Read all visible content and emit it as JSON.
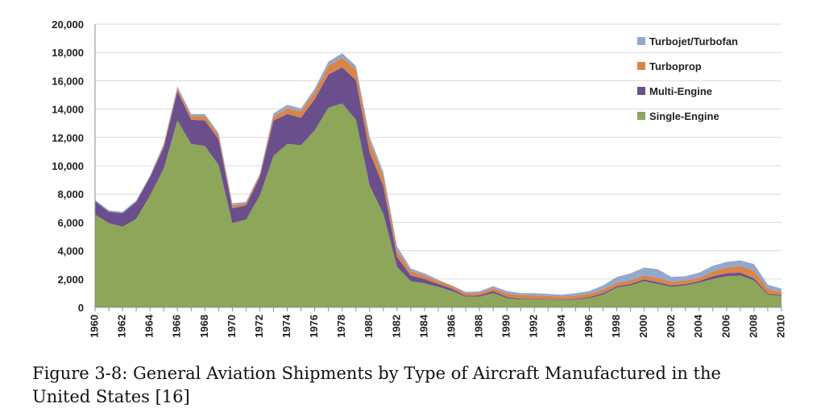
{
  "chart_data": {
    "type": "area",
    "stacked": true,
    "title": "",
    "xlabel": "",
    "ylabel": "",
    "ylim": [
      0,
      20000
    ],
    "y_ticks": [
      "0",
      "2,000",
      "4,000",
      "6,000",
      "8,000",
      "10,000",
      "12,000",
      "14,000",
      "16,000",
      "18,000",
      "20,000"
    ],
    "x_tick_labels": [
      "1960",
      "1962",
      "1964",
      "1966",
      "1968",
      "1970",
      "1972",
      "1974",
      "1976",
      "1978",
      "1980",
      "1982",
      "1984",
      "1986",
      "1988",
      "1990",
      "1992",
      "1994",
      "1996",
      "1998",
      "2000",
      "2002",
      "2004",
      "2006",
      "2008",
      "2010"
    ],
    "grid": "horizontal",
    "legend_position": "top-right",
    "x": [
      1960,
      1961,
      1962,
      1963,
      1964,
      1965,
      1966,
      1967,
      1968,
      1969,
      1970,
      1971,
      1972,
      1973,
      1974,
      1975,
      1976,
      1977,
      1978,
      1979,
      1980,
      1981,
      1982,
      1983,
      1984,
      1985,
      1986,
      1987,
      1988,
      1989,
      1990,
      1991,
      1992,
      1993,
      1994,
      1995,
      1996,
      1997,
      1998,
      1999,
      2000,
      2001,
      2002,
      2003,
      2004,
      2005,
      2006,
      2007,
      2008,
      2009,
      2010
    ],
    "series": [
      {
        "name": "Single-Engine",
        "color": "#8da65a",
        "values": [
          6550,
          5950,
          5700,
          6250,
          7900,
          9800,
          13200,
          11550,
          11400,
          10050,
          5950,
          6200,
          7900,
          10700,
          11550,
          11450,
          12500,
          14100,
          14400,
          13250,
          8600,
          6600,
          2850,
          1850,
          1700,
          1450,
          1150,
          750,
          750,
          1000,
          650,
          550,
          550,
          550,
          500,
          550,
          650,
          900,
          1400,
          1550,
          1850,
          1650,
          1450,
          1550,
          1750,
          2000,
          2200,
          2250,
          1900,
          900,
          800
        ]
      },
      {
        "name": "Multi-Engine",
        "color": "#6a4f8c",
        "values": [
          950,
          800,
          950,
          1200,
          1300,
          1500,
          2050,
          1700,
          1800,
          1800,
          1050,
          1000,
          1300,
          2500,
          2100,
          1950,
          2200,
          2350,
          2550,
          2800,
          2350,
          1950,
          700,
          400,
          300,
          200,
          170,
          70,
          100,
          150,
          90,
          60,
          50,
          40,
          40,
          50,
          70,
          100,
          90,
          100,
          130,
          130,
          100,
          100,
          100,
          200,
          200,
          200,
          150,
          70,
          70
        ]
      },
      {
        "name": "Turboprop",
        "color": "#d9854a",
        "values": [
          0,
          0,
          0,
          0,
          0,
          150,
          200,
          250,
          300,
          300,
          200,
          150,
          150,
          300,
          400,
          450,
          500,
          600,
          700,
          750,
          800,
          700,
          450,
          300,
          250,
          200,
          180,
          170,
          180,
          200,
          250,
          250,
          250,
          220,
          220,
          220,
          250,
          250,
          250,
          250,
          280,
          300,
          250,
          250,
          250,
          330,
          410,
          470,
          550,
          340,
          200
        ]
      },
      {
        "name": "Turbojet/Turbofan",
        "color": "#92a8cc",
        "values": [
          100,
          100,
          100,
          100,
          100,
          100,
          150,
          150,
          150,
          150,
          150,
          100,
          100,
          200,
          250,
          200,
          250,
          300,
          300,
          250,
          300,
          300,
          300,
          200,
          150,
          100,
          50,
          100,
          100,
          150,
          160,
          150,
          150,
          140,
          140,
          180,
          180,
          300,
          400,
          500,
          550,
          600,
          350,
          300,
          350,
          400,
          400,
          400,
          450,
          300,
          250
        ]
      }
    ]
  },
  "caption": {
    "line1": "Figure 3-8: General Aviation Shipments by Type of Aircraft Manufactured in the",
    "line2": "United States [16]"
  }
}
